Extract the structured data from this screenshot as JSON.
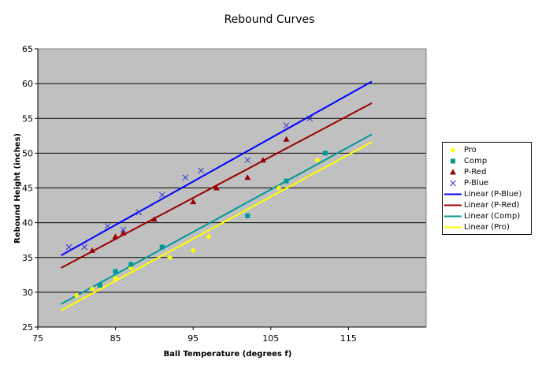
{
  "chart_data": {
    "type": "scatter",
    "title": "Rebound Curves",
    "xlabel": "Ball Temperature (degrees f)",
    "ylabel": "Rebound Height (inches)",
    "xlim": [
      75,
      125
    ],
    "ylim": [
      25,
      65
    ],
    "xticks": [
      "75",
      "85",
      "95",
      "105",
      "115"
    ],
    "xtick_values": [
      75,
      85,
      95,
      105,
      115
    ],
    "yticks": [
      "25",
      "30",
      "35",
      "40",
      "45",
      "50",
      "55",
      "60",
      "65"
    ],
    "ytick_values": [
      25,
      30,
      35,
      40,
      45,
      50,
      55,
      60,
      65
    ],
    "grid": "horizontal",
    "plot_background": "#c0c0c0",
    "legend_position": "right",
    "series": [
      {
        "name": "Pro",
        "marker": "diamond",
        "color": "#ffff00",
        "x": [
          80,
          82,
          85,
          87,
          92,
          95,
          97,
          106,
          111
        ],
        "y": [
          29.5,
          30.5,
          32,
          33.5,
          35,
          36,
          38,
          45,
          49
        ]
      },
      {
        "name": "Comp",
        "marker": "square",
        "color": "#009999",
        "x": [
          83,
          85,
          87,
          91,
          102,
          107,
          112
        ],
        "y": [
          31,
          33,
          34,
          36.5,
          41,
          46,
          50
        ]
      },
      {
        "name": "P-Red",
        "marker": "triangle",
        "color": "#990000",
        "x": [
          82,
          85,
          86,
          90,
          95,
          98,
          102,
          104,
          107
        ],
        "y": [
          36,
          38,
          38.5,
          40.5,
          43,
          45,
          46.5,
          49,
          52
        ]
      },
      {
        "name": "P-Blue",
        "marker": "x",
        "color": "#3333cc",
        "x": [
          79,
          81,
          84,
          86,
          88,
          91,
          94,
          96,
          102,
          107,
          110
        ],
        "y": [
          36.5,
          36.5,
          39.5,
          39,
          41.5,
          44,
          46.5,
          47.5,
          49,
          54,
          55
        ]
      }
    ],
    "trendlines": [
      {
        "name": "Linear (P-Blue)",
        "color": "#0000ff",
        "x": [
          78,
          118
        ],
        "y": [
          35.3,
          60.3
        ]
      },
      {
        "name": "Linear (P-Red)",
        "color": "#990000",
        "x": [
          78,
          118
        ],
        "y": [
          33.5,
          57.2
        ]
      },
      {
        "name": "Linear (Comp)",
        "color": "#009999",
        "x": [
          78,
          118
        ],
        "y": [
          28.3,
          52.7
        ]
      },
      {
        "name": "Linear (Pro)",
        "color": "#ffff00",
        "x": [
          78,
          118
        ],
        "y": [
          27.4,
          51.6
        ]
      }
    ],
    "legend": [
      {
        "label": "Pro",
        "kind": "marker",
        "marker": "diamond",
        "color": "#ffff00"
      },
      {
        "label": "Comp",
        "kind": "marker",
        "marker": "square",
        "color": "#009999"
      },
      {
        "label": "P-Red",
        "kind": "marker",
        "marker": "triangle",
        "color": "#990000"
      },
      {
        "label": "P-Blue",
        "kind": "marker",
        "marker": "x",
        "color": "#3333cc"
      },
      {
        "label": "Linear (P-Blue)",
        "kind": "line",
        "color": "#0000ff"
      },
      {
        "label": "Linear (P-Red)",
        "kind": "line",
        "color": "#990000"
      },
      {
        "label": "Linear (Comp)",
        "kind": "line",
        "color": "#009999"
      },
      {
        "label": "Linear (Pro)",
        "kind": "line",
        "color": "#ffff00"
      }
    ]
  }
}
